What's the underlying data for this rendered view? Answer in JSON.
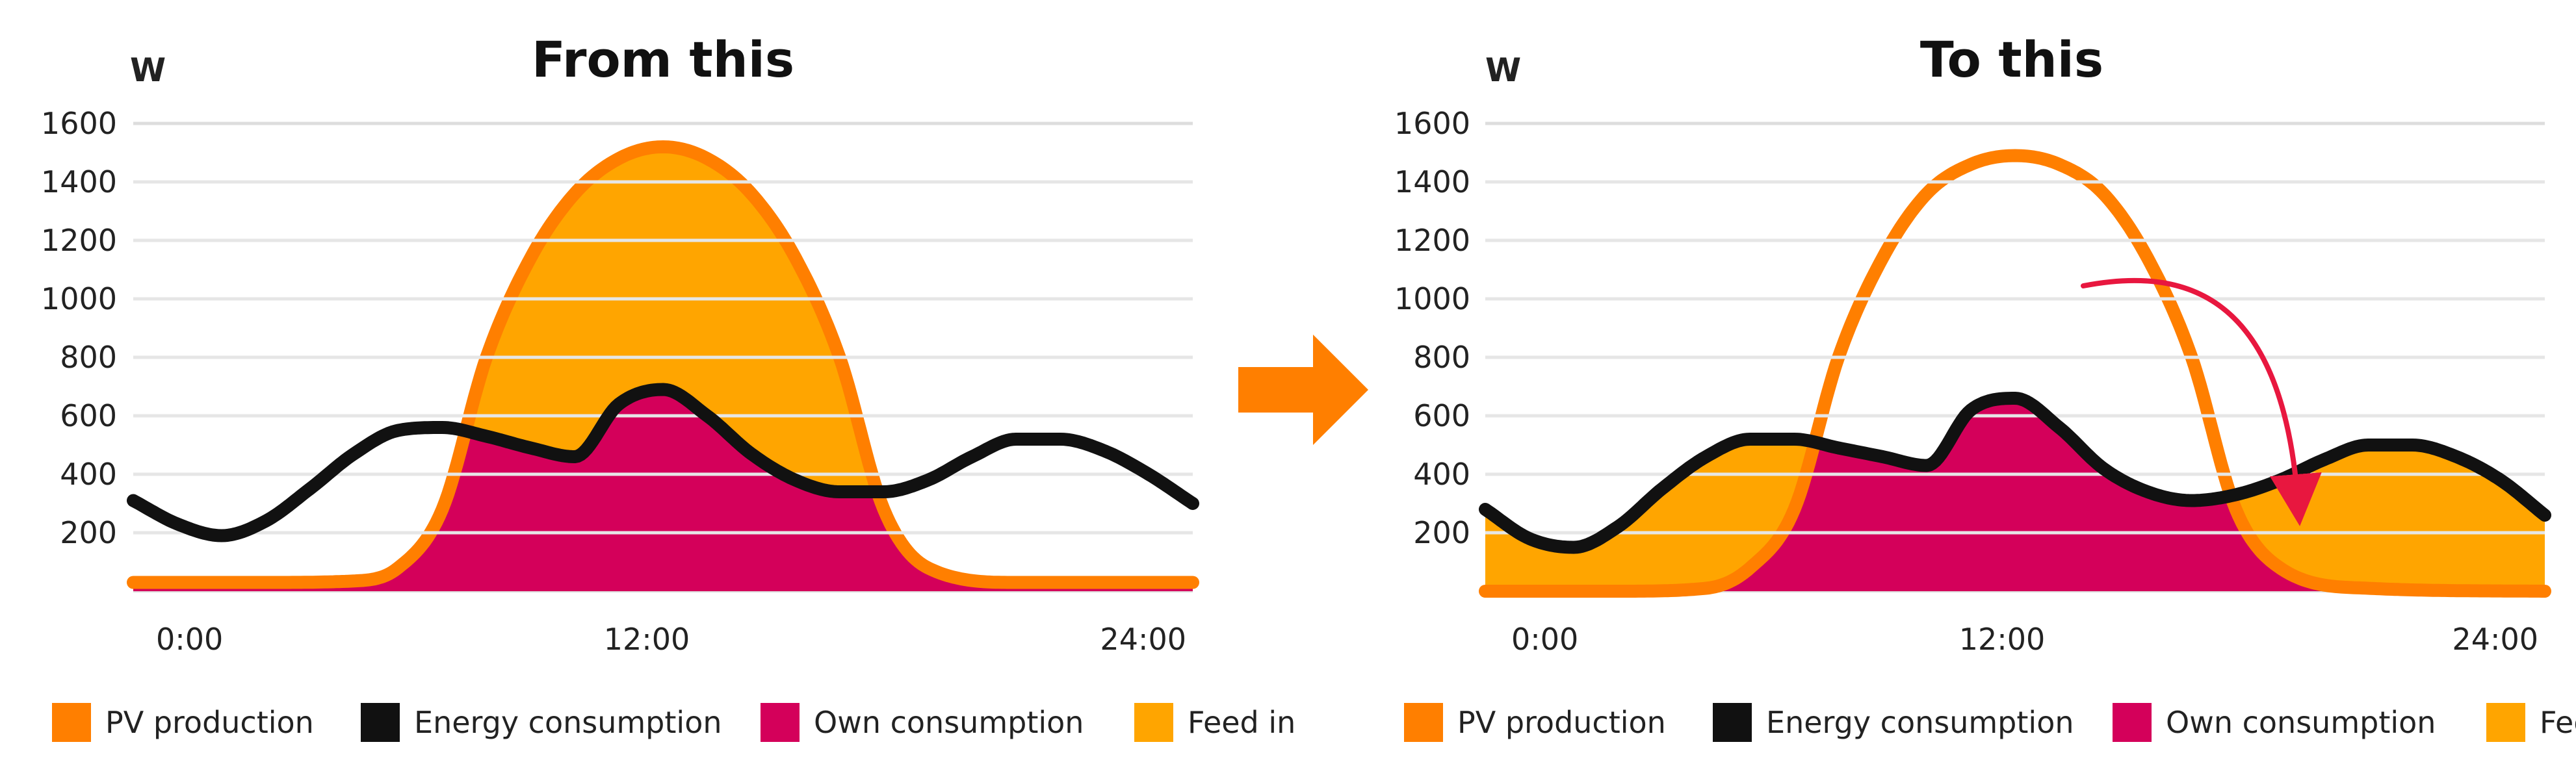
{
  "colors": {
    "pv_production": "#FF7F00",
    "energy_consumption": "#111111",
    "own_consumption": "#D4005A",
    "feed_in": "#FFA500",
    "arrow_main": "#FF7F00",
    "shift_arrow": "#E8173F",
    "gridline": "#DDDDDD"
  },
  "middle_arrow": {
    "icon": "right-arrow-icon"
  },
  "chart_data": [
    {
      "type": "area",
      "title": "From this",
      "ylabel": "W",
      "ylim": [
        0,
        1600
      ],
      "yticks": [
        200,
        400,
        600,
        800,
        1000,
        1200,
        1400,
        1600
      ],
      "xlim": [
        0,
        24
      ],
      "xtick_labels": [
        "0:00",
        "12:00",
        "24:00"
      ],
      "xtick_values": [
        0,
        12,
        24
      ],
      "shifted": false,
      "legend": [
        "PV production",
        "Energy consumption",
        "Own consumption",
        "Feed in"
      ],
      "series": [
        {
          "name": "PV production",
          "x": [
            0,
            3,
            5,
            6,
            7,
            8,
            9,
            10,
            11,
            12,
            13,
            14,
            15,
            16,
            17,
            18,
            20,
            24
          ],
          "values": [
            30,
            30,
            35,
            80,
            280,
            800,
            1140,
            1360,
            1480,
            1520,
            1480,
            1360,
            1140,
            800,
            280,
            80,
            30,
            30
          ]
        },
        {
          "name": "Energy consumption",
          "x": [
            0,
            1,
            2,
            3,
            4,
            5,
            6,
            7,
            8,
            9,
            10,
            11,
            12,
            13,
            14,
            15,
            16,
            17,
            18,
            19,
            20,
            21,
            22,
            23,
            24
          ],
          "values": [
            310,
            230,
            190,
            240,
            350,
            470,
            550,
            560,
            530,
            490,
            460,
            640,
            690,
            600,
            470,
            380,
            340,
            340,
            380,
            460,
            520,
            520,
            480,
            400,
            300
          ]
        }
      ]
    },
    {
      "type": "area",
      "title": "To this",
      "ylabel": "W",
      "ylim": [
        0,
        1600
      ],
      "yticks": [
        200,
        400,
        600,
        800,
        1000,
        1200,
        1400,
        1600
      ],
      "xlim": [
        0,
        24
      ],
      "xtick_labels": [
        "0:00",
        "12:00",
        "24:00"
      ],
      "xtick_values": [
        0,
        12,
        24
      ],
      "shifted": true,
      "legend": [
        "PV production",
        "Energy consumption",
        "Own consumption",
        "Feed in"
      ],
      "series": [
        {
          "name": "PV production",
          "x": [
            0,
            3,
            5,
            6,
            7,
            8,
            9,
            10,
            11,
            12,
            13,
            14,
            15,
            16,
            17,
            18,
            20,
            24
          ],
          "values": [
            0,
            0,
            10,
            80,
            280,
            800,
            1140,
            1360,
            1460,
            1490,
            1460,
            1360,
            1140,
            800,
            280,
            80,
            10,
            0
          ]
        },
        {
          "name": "Energy consumption",
          "x": [
            0,
            1,
            2,
            3,
            4,
            5,
            6,
            7,
            8,
            9,
            10,
            11,
            12,
            13,
            14,
            15,
            16,
            17,
            18,
            19,
            20,
            21,
            22,
            23,
            24
          ],
          "values": [
            280,
            180,
            150,
            220,
            350,
            460,
            520,
            520,
            490,
            460,
            430,
            620,
            660,
            560,
            420,
            340,
            310,
            330,
            380,
            450,
            500,
            500,
            460,
            380,
            260
          ]
        }
      ]
    }
  ]
}
